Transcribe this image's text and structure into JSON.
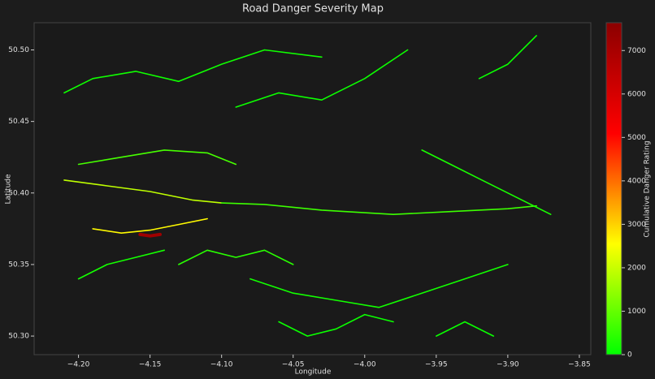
{
  "chart_data": {
    "type": "map",
    "title": "Road Danger Severity Map",
    "x_label": "Longitude",
    "y_label": "Latitude",
    "colorbar_label": "Cumulative Danger Rating",
    "xlim": [
      -4.231,
      -3.842
    ],
    "ylim": [
      50.287,
      50.519
    ],
    "xticks": [
      {
        "value": -4.2,
        "label": "−4.20"
      },
      {
        "value": -4.15,
        "label": "−4.15"
      },
      {
        "value": -4.1,
        "label": "−4.10"
      },
      {
        "value": -4.05,
        "label": "−4.05"
      },
      {
        "value": -4.0,
        "label": "−4.00"
      },
      {
        "value": -3.95,
        "label": "−3.95"
      },
      {
        "value": -3.9,
        "label": "−3.90"
      },
      {
        "value": -3.85,
        "label": "−3.85"
      }
    ],
    "yticks": [
      {
        "value": 50.3,
        "label": "50.30"
      },
      {
        "value": 50.35,
        "label": "50.35"
      },
      {
        "value": 50.4,
        "label": "50.40"
      },
      {
        "value": 50.45,
        "label": "50.45"
      },
      {
        "value": 50.5,
        "label": "50.50"
      }
    ],
    "clim": [
      0,
      7640
    ],
    "cticks": [
      0,
      1000,
      2000,
      3000,
      4000,
      5000,
      6000,
      7000
    ],
    "colormap": [
      "#00ff00",
      "#ffff00",
      "#ff0000",
      "#8b0000"
    ],
    "roads": [
      {
        "x": [
          -4.21,
          -4.18,
          -4.15,
          -4.12,
          -4.1
        ],
        "y": [
          50.409,
          50.405,
          50.401,
          50.395,
          50.393
        ],
        "value": 1900
      },
      {
        "x": [
          -4.1,
          -4.07,
          -4.03,
          -3.98,
          -3.94,
          -3.9,
          -3.88
        ],
        "y": [
          50.393,
          50.392,
          50.388,
          50.385,
          50.387,
          50.389,
          50.391
        ],
        "value": 600
      },
      {
        "x": [
          -4.157,
          -4.15,
          -4.143
        ],
        "y": [
          50.371,
          50.37,
          50.371
        ],
        "value": 7200
      },
      {
        "x": [
          -4.19,
          -4.17,
          -4.15,
          -4.13,
          -4.11
        ],
        "y": [
          50.375,
          50.372,
          50.374,
          50.378,
          50.382
        ],
        "value": 2600
      },
      {
        "x": [
          -4.2,
          -4.17,
          -4.14,
          -4.11,
          -4.09
        ],
        "y": [
          50.42,
          50.425,
          50.43,
          50.428,
          50.42
        ],
        "value": 700
      },
      {
        "x": [
          -4.21,
          -4.19,
          -4.16,
          -4.13,
          -4.1,
          -4.07,
          -4.03
        ],
        "y": [
          50.47,
          50.48,
          50.485,
          50.478,
          50.49,
          50.5,
          50.495
        ],
        "value": 150
      },
      {
        "x": [
          -4.09,
          -4.06,
          -4.03,
          -4.0,
          -3.97
        ],
        "y": [
          50.46,
          50.47,
          50.465,
          50.48,
          50.5
        ],
        "value": 120
      },
      {
        "x": [
          -3.92,
          -3.9,
          -3.88
        ],
        "y": [
          50.48,
          50.49,
          50.51
        ],
        "value": 100
      },
      {
        "x": [
          -4.08,
          -4.05,
          -4.02,
          -3.99,
          -3.96,
          -3.93,
          -3.9
        ],
        "y": [
          50.34,
          50.33,
          50.325,
          50.32,
          50.33,
          50.34,
          50.35
        ],
        "value": 180
      },
      {
        "x": [
          -4.2,
          -4.18,
          -4.16,
          -4.14
        ],
        "y": [
          50.34,
          50.35,
          50.355,
          50.36
        ],
        "value": 200
      },
      {
        "x": [
          -4.06,
          -4.04,
          -4.02,
          -4.0,
          -3.98
        ],
        "y": [
          50.31,
          50.3,
          50.305,
          50.315,
          50.31
        ],
        "value": 100
      },
      {
        "x": [
          -3.96,
          -3.94,
          -3.92,
          -3.9,
          -3.87
        ],
        "y": [
          50.43,
          50.42,
          50.41,
          50.4,
          50.385
        ],
        "value": 250
      },
      {
        "x": [
          -4.13,
          -4.11,
          -4.09,
          -4.07,
          -4.05
        ],
        "y": [
          50.35,
          50.36,
          50.355,
          50.36,
          50.35
        ],
        "value": 400
      },
      {
        "x": [
          -3.95,
          -3.93,
          -3.91
        ],
        "y": [
          50.3,
          50.31,
          50.3
        ],
        "value": 90
      }
    ]
  }
}
